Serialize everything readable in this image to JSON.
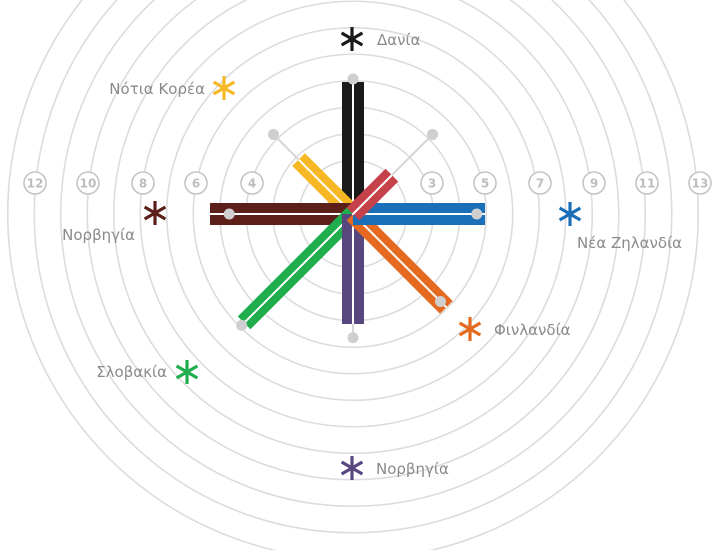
{
  "chart_data": {
    "type": "radial-bar",
    "rings": [
      "1",
      "2",
      "3",
      "4",
      "5",
      "6",
      "7",
      "8",
      "9",
      "10",
      "11",
      "12",
      "13"
    ],
    "ring_labels": {
      "left": [
        "12",
        "10",
        "8",
        "6",
        "4"
      ],
      "right": [
        "3",
        "5",
        "7",
        "9",
        "11",
        "13"
      ]
    },
    "grid": true,
    "series": [
      {
        "name": "Δανία",
        "value": 6,
        "reference": 6,
        "color": "#1a1a1a",
        "direction": "up"
      },
      {
        "name": "Νότια Κορέα",
        "value": 3.5,
        "reference": 5,
        "color": "#f7b825",
        "direction": "up-left"
      },
      {
        "name": "Νορβηγία",
        "value": 6.5,
        "reference": 5.5,
        "color": "#5c1f1a",
        "direction": "left"
      },
      {
        "name": "Σλοβακία",
        "value": 7,
        "reference": 7,
        "color": "#1fad4d",
        "direction": "down-left"
      },
      {
        "name": "Νορβηγία",
        "value": 5,
        "reference": 5.5,
        "color": "#58477f",
        "direction": "down"
      },
      {
        "name": "Φινλανδία",
        "value": 6,
        "reference": 5.5,
        "color": "#e56a20",
        "direction": "down-right"
      },
      {
        "name": "Νέα Ζηλανδία",
        "value": 6,
        "reference": 5.5,
        "color": "#1a6fb8",
        "direction": "right"
      },
      {
        "name": "",
        "value": 2.5,
        "reference": 5,
        "color": "#c5424a",
        "direction": "up-right"
      }
    ]
  }
}
